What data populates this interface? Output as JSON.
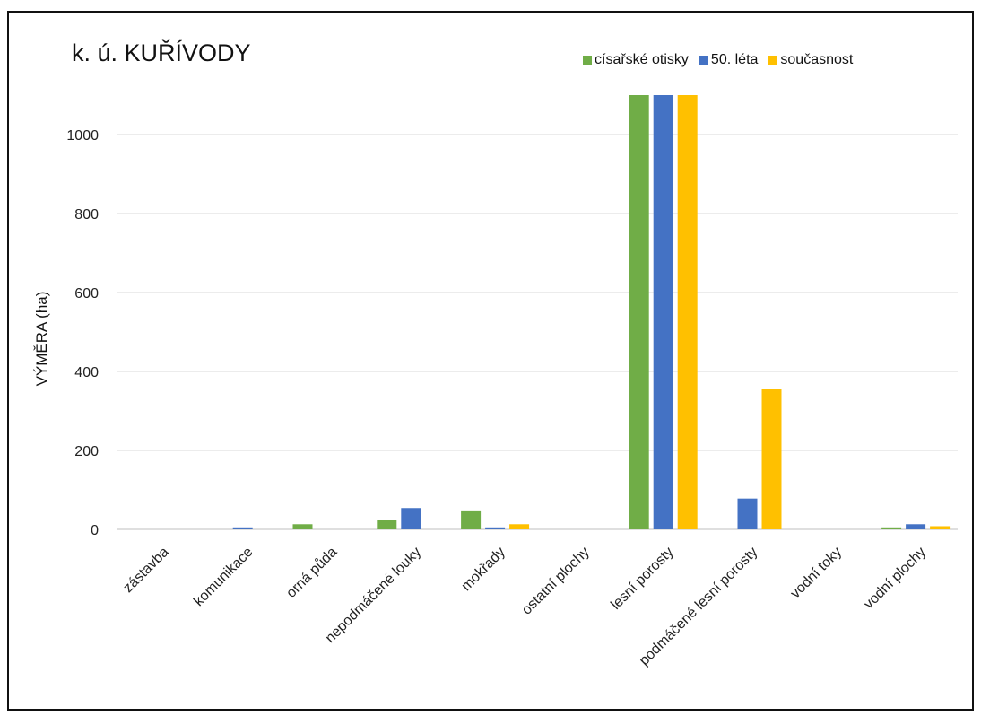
{
  "chart_data": {
    "type": "bar",
    "title": "k. ú. KUŘÍVODY",
    "ylabel": "VÝMĚRA (ha)",
    "xlabel": "",
    "ylim": [
      0,
      1100
    ],
    "yticks": [
      0,
      200,
      400,
      600,
      800,
      1000
    ],
    "grid": true,
    "legend_position": "top-right",
    "categories": [
      "zástavba",
      "komunikace",
      "orná půda",
      "nepodmáčené louky",
      "mokřady",
      "ostatní plochy",
      "lesní porosty",
      "podmáčené lesní porosty",
      "vodní toky",
      "vodní plochy"
    ],
    "series": [
      {
        "name": "císařské otisky",
        "color": "#70AD47",
        "values": [
          0,
          0,
          13,
          24,
          48,
          0,
          1100,
          0,
          0,
          5
        ]
      },
      {
        "name": "50. léta",
        "color": "#4472C4",
        "values": [
          0,
          5,
          0,
          54,
          5,
          0,
          1100,
          78,
          0,
          13
        ]
      },
      {
        "name": "současnost",
        "color": "#FFC000",
        "values": [
          0,
          0,
          0,
          0,
          13,
          0,
          1100,
          355,
          0,
          8
        ]
      }
    ]
  }
}
